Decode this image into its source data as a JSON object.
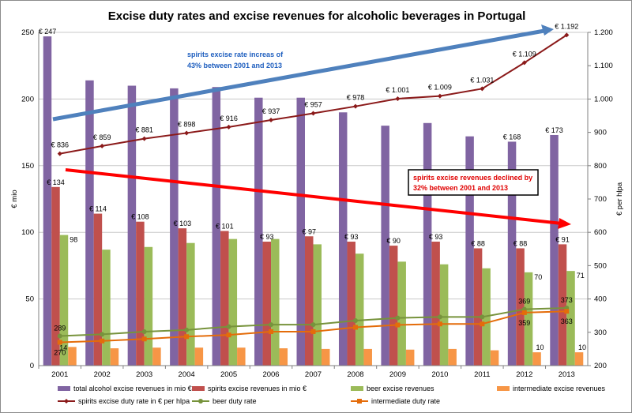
{
  "chart_data": {
    "type": "bar",
    "title": "Excise duty rates and excise revenues for alcoholic beverages in Portugal",
    "categories": [
      "2001",
      "2002",
      "2003",
      "2004",
      "2005",
      "2006",
      "2007",
      "2008",
      "2009",
      "2010",
      "2011",
      "2012",
      "2013"
    ],
    "ylabel_left": "€ mio",
    "ylabel_right": "€ per hlpa",
    "ylim_left": [
      0,
      250
    ],
    "ylim_right": [
      200,
      1200
    ],
    "yticks_left": [
      "0",
      "50",
      "100",
      "150",
      "200",
      "250"
    ],
    "yticks_right": [
      "200",
      "300",
      "400",
      "500",
      "600",
      "700",
      "800",
      "900",
      "1.000",
      "1.100",
      "1.200"
    ],
    "grid": "horizontal",
    "legend_position": "bottom",
    "bar_series": [
      {
        "name": "total alcohol excise revenues in mio €",
        "color": "#8064a2",
        "values": [
          247,
          214,
          210,
          208,
          209,
          201,
          201,
          190,
          180,
          182,
          172,
          168,
          173
        ],
        "labels": [
          "€ 247",
          "",
          "",
          "",
          "",
          "",
          "",
          "",
          "",
          "",
          "",
          "€ 168",
          "€ 173"
        ]
      },
      {
        "name": "spirits excise revenues in mio €",
        "color": "#c0504d",
        "values": [
          134,
          114,
          108,
          103,
          101,
          93,
          97,
          93,
          90,
          93,
          88,
          88,
          91
        ],
        "labels": [
          "€ 134",
          "€ 114",
          "€ 108",
          "€ 103",
          "€ 101",
          "€ 93",
          "€ 97",
          "€ 93",
          "€ 90",
          "€ 93",
          "€ 88",
          "€ 88",
          "€ 91"
        ]
      },
      {
        "name": "beer excise revenues",
        "color": "#9bbb59",
        "values": [
          98,
          87,
          89,
          92,
          95,
          95,
          91,
          84,
          78,
          76,
          73,
          70,
          71
        ],
        "labels": [
          "98",
          "",
          "",
          "",
          "",
          "",
          "",
          "",
          "",
          "",
          "",
          "70",
          "71"
        ]
      },
      {
        "name": "intermediate excise revenues",
        "color": "#f79646",
        "values": [
          14,
          13,
          13.5,
          13.5,
          13.5,
          13,
          12.5,
          12.5,
          12,
          12.5,
          11.5,
          10,
          10
        ],
        "labels": [
          "14",
          "",
          "",
          "",
          "",
          "",
          "",
          "",
          "",
          "",
          "",
          "10",
          "10"
        ]
      }
    ],
    "line_series": [
      {
        "name": "spirits excise duty rate in € per hlpa",
        "color": "#8b1a1a",
        "values": [
          836,
          859,
          881,
          898,
          916,
          937,
          957,
          978,
          1001,
          1009,
          1031,
          1109,
          1192
        ],
        "labels": [
          "€ 836",
          "€ 859",
          "€ 881",
          "€ 898",
          "€ 916",
          "€ 937",
          "€ 957",
          "€ 978",
          "€ 1.001",
          "€ 1.009",
          "€ 1.031",
          "€ 1.109",
          "€ 1.192"
        ]
      },
      {
        "name": "beer duty rate",
        "color": "#77933c",
        "values": [
          289,
          294,
          302,
          307,
          317,
          323,
          323,
          335,
          343,
          346,
          346,
          369,
          373
        ],
        "labels": [
          "289",
          "",
          "",
          "",
          "",
          "",
          "",
          "",
          "",
          "",
          "",
          "369",
          "373"
        ]
      },
      {
        "name": "intermediate duty rate",
        "color": "#e46c0a",
        "values": [
          270,
          274,
          280,
          287,
          292,
          302,
          302,
          315,
          322,
          325,
          325,
          359,
          363
        ],
        "labels": [
          "270",
          "",
          "",
          "",
          "",
          "",
          "",
          "",
          "",
          "",
          "",
          "359",
          "363"
        ]
      }
    ],
    "annotations": {
      "blue_text": [
        "spirits excise rate increas of",
        "43% between 2001 and 2013"
      ],
      "red_text": [
        "spirits excise revenues declined  by",
        "32% between 2001 and 2013"
      ]
    }
  }
}
